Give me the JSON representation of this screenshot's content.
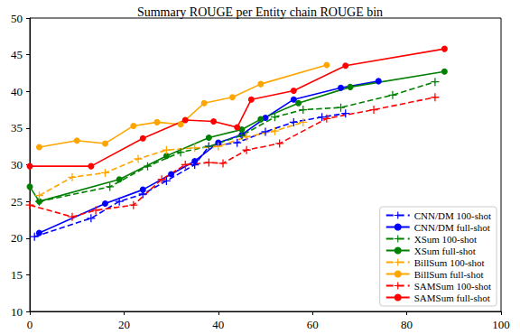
{
  "chart_data": {
    "type": "line",
    "title": "Summary ROUGE per Entity chain ROUGE bin",
    "xlim": [
      0,
      100
    ],
    "xticks": [
      0,
      20,
      40,
      60,
      80,
      100
    ],
    "ylim": [
      10,
      50
    ],
    "yticks": [
      10,
      15,
      20,
      25,
      30,
      35,
      40,
      45,
      50
    ],
    "grid": false,
    "legend": "lower right",
    "series": [
      {
        "name": "CNN/DM 100-shot",
        "color": "#0000ff",
        "marker": "plus",
        "line_style": "dashed",
        "x": [
          1,
          13,
          19,
          24,
          29,
          35,
          38,
          44,
          50,
          56,
          62,
          67
        ],
        "values": [
          20.2,
          22.7,
          25,
          26,
          27.8,
          30,
          32.5,
          33,
          34.5,
          35.8,
          36.5,
          37
        ]
      },
      {
        "name": "CNN/DM full-shot",
        "color": "#0000ff",
        "marker": "circle",
        "line_style": "solid",
        "x": [
          2,
          16,
          24,
          30,
          35,
          40,
          45,
          50,
          56,
          66,
          74
        ],
        "values": [
          20.7,
          24.7,
          26.6,
          28.7,
          30.5,
          33,
          34.1,
          36.4,
          38.9,
          40.5,
          41.4
        ]
      },
      {
        "name": "XSum 100-shot",
        "color": "#008000",
        "marker": "plus",
        "line_style": "dashed",
        "x": [
          2,
          17,
          25,
          32,
          38,
          45,
          52,
          58,
          66,
          77,
          86
        ],
        "values": [
          25,
          27,
          29.8,
          31.7,
          32.5,
          34,
          36.5,
          37.5,
          37.8,
          39.5,
          41.3
        ]
      },
      {
        "name": "XSum full-shot",
        "color": "#008000",
        "marker": "circle",
        "line_style": "solid",
        "x": [
          0,
          2,
          19,
          29,
          38,
          45,
          49,
          57,
          68,
          88
        ],
        "values": [
          27,
          25,
          28,
          31.2,
          33.7,
          34.8,
          36.2,
          38.4,
          40.6,
          42.7
        ]
      },
      {
        "name": "BillSum 100-shot",
        "color": "#ffa500",
        "marker": "plus",
        "line_style": "dashed",
        "x": [
          2,
          9,
          16,
          23,
          29,
          35,
          40,
          46,
          52,
          58
        ],
        "values": [
          25.8,
          28.3,
          28.9,
          30.8,
          32,
          32.3,
          32.5,
          33.8,
          34.6,
          35.8
        ]
      },
      {
        "name": "BillSum full-shot",
        "color": "#ffa500",
        "marker": "circle",
        "line_style": "solid",
        "x": [
          2,
          10,
          16,
          22,
          27,
          32,
          37,
          43,
          49,
          63
        ],
        "values": [
          32.4,
          33.3,
          32.9,
          35.3,
          35.8,
          35.5,
          38.4,
          39.2,
          41,
          43.6
        ]
      },
      {
        "name": "SAMSum 100-shot",
        "color": "#ff0000",
        "marker": "plus",
        "line_style": "dashed",
        "x": [
          0,
          9,
          14,
          22,
          28,
          33,
          38,
          41,
          46,
          53,
          63,
          73,
          86
        ],
        "values": [
          24.5,
          22.9,
          23.8,
          24.5,
          28,
          30,
          30.3,
          30.2,
          32,
          32.9,
          36.3,
          37.5,
          39.2
        ]
      },
      {
        "name": "SAMSum full-shot",
        "color": "#ff0000",
        "marker": "circle",
        "line_style": "solid",
        "x": [
          0,
          13,
          24,
          33,
          39,
          44,
          47,
          56,
          67,
          88
        ],
        "values": [
          29.8,
          29.8,
          33.6,
          36.1,
          35.9,
          35.1,
          38.9,
          40.1,
          43.5,
          45.8
        ]
      }
    ]
  }
}
